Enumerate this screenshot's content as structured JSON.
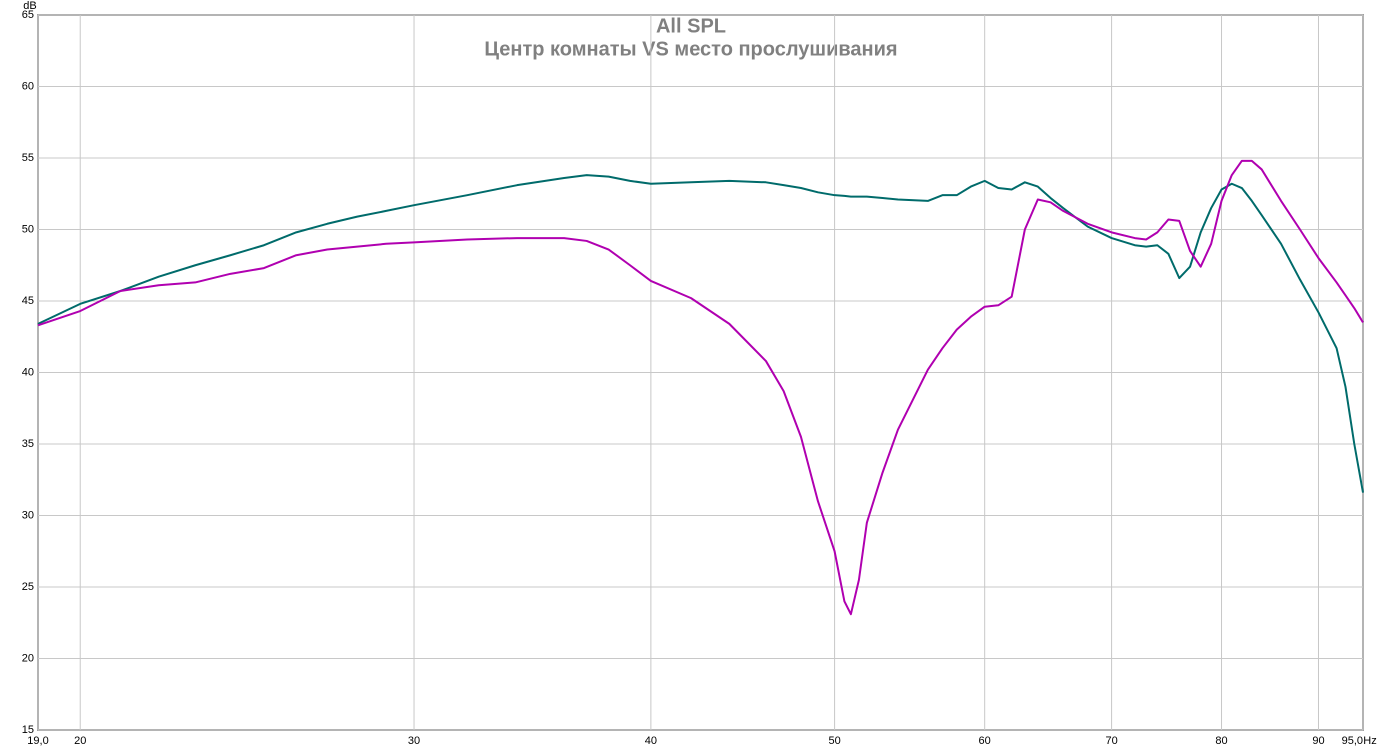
{
  "chart_data": {
    "type": "line",
    "title": "All SPL",
    "subtitle": "Центр комнаты VS место прослушивания",
    "xlabel": "Hz",
    "ylabel": "dB",
    "log_x": true,
    "grid": true,
    "x": [
      19,
      20,
      21,
      22,
      23,
      24,
      25,
      26,
      27,
      28,
      29,
      30,
      32,
      34,
      36,
      37,
      38,
      39,
      40,
      42,
      44,
      46,
      47,
      48,
      49,
      50,
      50.6,
      51,
      51.5,
      52,
      53,
      54,
      56,
      57,
      58,
      59,
      60,
      61,
      62,
      63,
      64,
      65,
      66,
      68,
      70,
      72,
      73,
      74,
      75,
      76,
      77,
      78,
      79,
      80,
      81,
      82,
      83,
      84,
      86,
      88,
      90,
      92,
      93,
      94,
      95
    ],
    "series": [
      {
        "color": "#006b6b",
        "values": [
          43.4,
          44.8,
          45.7,
          46.7,
          47.5,
          48.2,
          48.9,
          49.8,
          50.4,
          50.9,
          51.3,
          51.7,
          52.4,
          53.1,
          53.6,
          53.8,
          53.7,
          53.4,
          53.2,
          53.3,
          53.4,
          53.3,
          53.1,
          52.9,
          52.6,
          52.4,
          52.35,
          52.3,
          52.3,
          52.3,
          52.2,
          52.1,
          52.0,
          52.4,
          52.4,
          53.0,
          53.4,
          52.9,
          52.8,
          53.3,
          53.0,
          52.2,
          51.5,
          50.2,
          49.4,
          48.9,
          48.8,
          48.9,
          48.3,
          46.6,
          47.4,
          49.8,
          51.5,
          52.8,
          53.2,
          52.9,
          52.0,
          51.0,
          49.0,
          46.5,
          44.2,
          41.7,
          39.0,
          35.0,
          31.6
        ]
      },
      {
        "color": "#b000b0",
        "values": [
          43.3,
          44.3,
          45.7,
          46.1,
          46.3,
          46.9,
          47.3,
          48.2,
          48.6,
          48.8,
          49.0,
          49.1,
          49.3,
          49.4,
          49.4,
          49.2,
          48.6,
          47.5,
          46.4,
          45.2,
          43.4,
          40.8,
          38.7,
          35.5,
          31.0,
          27.5,
          24.0,
          23.1,
          25.5,
          29.5,
          33.0,
          36.0,
          40.2,
          41.7,
          43.0,
          43.9,
          44.6,
          44.7,
          45.3,
          50.0,
          52.1,
          51.9,
          51.3,
          50.4,
          49.8,
          49.4,
          49.3,
          49.8,
          50.7,
          50.6,
          48.5,
          47.4,
          49.0,
          52.0,
          53.8,
          54.8,
          54.8,
          54.2,
          52.0,
          50.0,
          48.0,
          46.3,
          45.4,
          44.5,
          43.5
        ]
      }
    ],
    "xlim": [
      19,
      95
    ],
    "xticks": [
      {
        "value": 19,
        "label": "19,0"
      },
      20,
      30,
      40,
      50,
      60,
      70,
      80,
      90,
      {
        "value": 95,
        "label": "95,0"
      }
    ],
    "ylim": [
      15,
      65
    ],
    "yticks": [
      15,
      20,
      25,
      30,
      35,
      40,
      45,
      50,
      55,
      60,
      65
    ]
  }
}
